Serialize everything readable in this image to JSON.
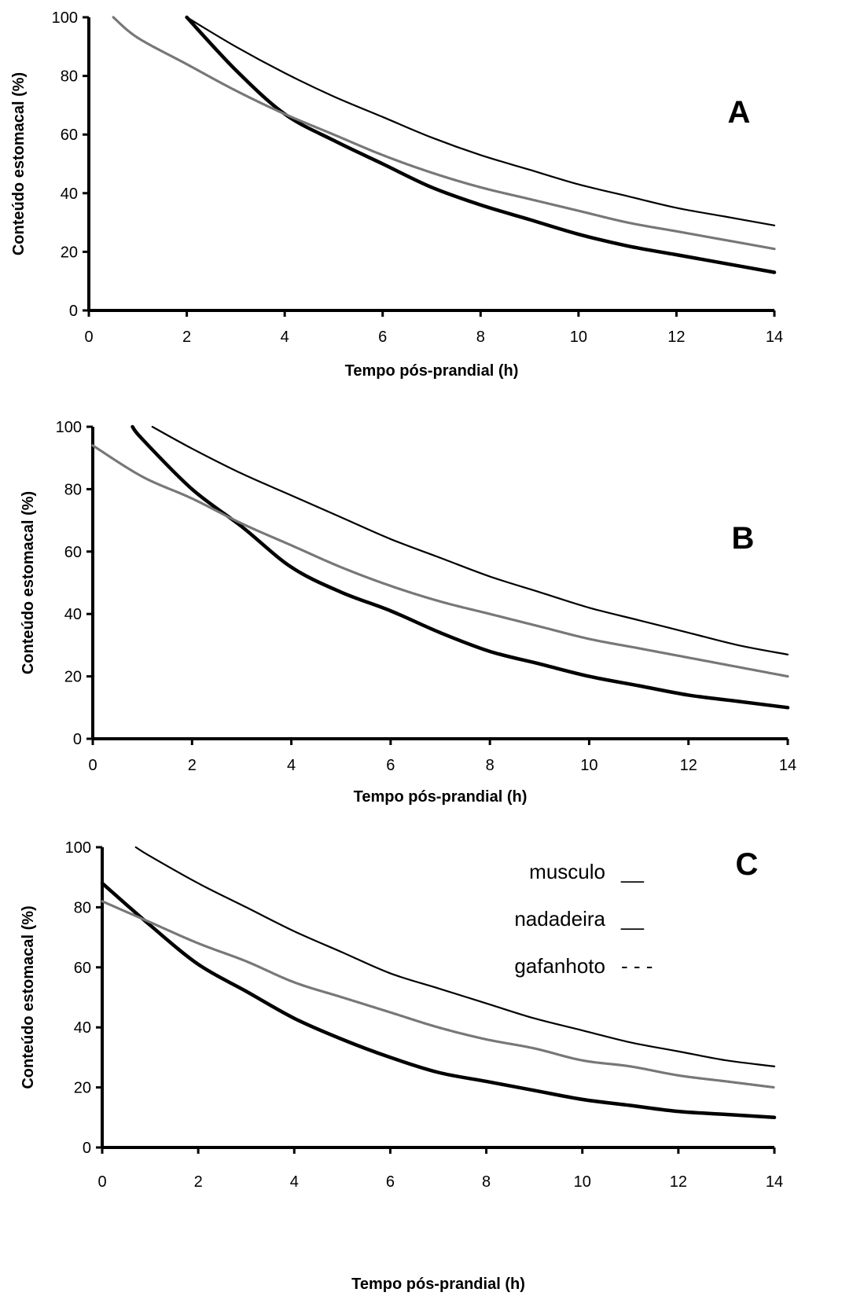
{
  "chart_data": [
    {
      "type": "line",
      "panel_label": "A",
      "xlabel": "Tempo pós-prandial (h)",
      "ylabel": "Conteúdo estomacal (%)",
      "xlim": [
        0,
        14
      ],
      "ylim": [
        0,
        100
      ],
      "xticks": [
        "0",
        "2",
        "4",
        "6",
        "8",
        "10",
        "12",
        "14"
      ],
      "yticks": [
        "0",
        "20",
        "40",
        "60",
        "80",
        "100"
      ],
      "grid": false,
      "series": [
        {
          "key": "musculo",
          "style": "thick-solid",
          "color": "#000000",
          "x": [
            2,
            3,
            4,
            5,
            6,
            7,
            8,
            9,
            10,
            11,
            12,
            13,
            14
          ],
          "y": [
            100,
            82,
            67,
            58,
            50,
            42,
            36,
            31,
            26,
            22,
            19,
            16,
            13
          ]
        },
        {
          "key": "nadadeira",
          "style": "thin-solid",
          "color": "#000000",
          "x": [
            2,
            3,
            4,
            5,
            6,
            7,
            8,
            9,
            10,
            11,
            12,
            13,
            14
          ],
          "y": [
            100,
            90,
            81,
            73,
            66,
            59,
            53,
            48,
            43,
            39,
            35,
            32,
            29
          ]
        },
        {
          "key": "gafanhoto",
          "style": "dotted",
          "color": "#777777",
          "x": [
            0.5,
            1,
            2,
            3,
            4,
            5,
            6,
            7,
            8,
            9,
            10,
            11,
            12,
            13,
            14
          ],
          "y": [
            100,
            93,
            84,
            75,
            67,
            60,
            53,
            47,
            42,
            38,
            34,
            30,
            27,
            24,
            21
          ]
        }
      ]
    },
    {
      "type": "line",
      "panel_label": "B",
      "xlabel": "Tempo pós-prandial (h)",
      "ylabel": "Conteúdo estomacal (%)",
      "xlim": [
        0,
        14
      ],
      "ylim": [
        0,
        100
      ],
      "xticks": [
        "0",
        "2",
        "4",
        "6",
        "8",
        "10",
        "12",
        "14"
      ],
      "yticks": [
        "0",
        "20",
        "40",
        "60",
        "80",
        "100"
      ],
      "grid": false,
      "series": [
        {
          "key": "musculo",
          "style": "thick-solid",
          "color": "#000000",
          "x": [
            0.8,
            1,
            2,
            3,
            4,
            5,
            6,
            7,
            8,
            9,
            10,
            11,
            12,
            13,
            14
          ],
          "y": [
            100,
            96,
            80,
            68,
            55,
            47,
            41,
            34,
            28,
            24,
            20,
            17,
            14,
            12,
            10
          ]
        },
        {
          "key": "nadadeira",
          "style": "thin-solid",
          "color": "#000000",
          "x": [
            1.2,
            2,
            3,
            4,
            5,
            6,
            7,
            8,
            9,
            10,
            11,
            12,
            13,
            14
          ],
          "y": [
            100,
            93,
            85,
            78,
            71,
            64,
            58,
            52,
            47,
            42,
            38,
            34,
            30,
            27
          ]
        },
        {
          "key": "gafanhoto",
          "style": "dotted",
          "color": "#777777",
          "x": [
            0,
            1,
            2,
            3,
            4,
            5,
            6,
            7,
            8,
            9,
            10,
            11,
            12,
            13,
            14
          ],
          "y": [
            94,
            84,
            77,
            69,
            62,
            55,
            49,
            44,
            40,
            36,
            32,
            29,
            26,
            23,
            20
          ]
        }
      ]
    },
    {
      "type": "line",
      "panel_label": "C",
      "xlabel": "Tempo pós-prandial (h)",
      "ylabel": "Conteúdo estomacal (%)",
      "xlim": [
        0,
        14
      ],
      "ylim": [
        0,
        100
      ],
      "xticks": [
        "0",
        "2",
        "4",
        "6",
        "8",
        "10",
        "12",
        "14"
      ],
      "yticks": [
        "0",
        "20",
        "40",
        "60",
        "80",
        "100"
      ],
      "grid": false,
      "legend": {
        "position": "top-right",
        "entries": [
          {
            "label": "musculo",
            "marker": "__"
          },
          {
            "label": "nadadeira",
            "marker": "__"
          },
          {
            "label": "gafanhoto",
            "marker": "- - -"
          }
        ]
      },
      "series": [
        {
          "key": "musculo",
          "name": "musculo",
          "style": "thick-solid",
          "color": "#000000",
          "x": [
            0,
            1,
            2,
            3,
            4,
            5,
            6,
            7,
            8,
            9,
            10,
            11,
            12,
            13,
            14
          ],
          "y": [
            88,
            74,
            61,
            52,
            43,
            36,
            30,
            25,
            22,
            19,
            16,
            14,
            12,
            11,
            10
          ]
        },
        {
          "key": "nadadeira",
          "name": "nadadeira",
          "style": "thin-solid",
          "color": "#000000",
          "x": [
            0.7,
            1,
            2,
            3,
            4,
            5,
            6,
            7,
            8,
            9,
            10,
            11,
            12,
            13,
            14
          ],
          "y": [
            100,
            97,
            88,
            80,
            72,
            65,
            58,
            53,
            48,
            43,
            39,
            35,
            32,
            29,
            27
          ]
        },
        {
          "key": "gafanhoto",
          "name": "gafanhoto",
          "style": "dotted",
          "color": "#777777",
          "x": [
            0,
            1,
            2,
            3,
            4,
            5,
            6,
            7,
            8,
            9,
            10,
            11,
            12,
            13,
            14
          ],
          "y": [
            82,
            75,
            68,
            62,
            55,
            50,
            45,
            40,
            36,
            33,
            29,
            27,
            24,
            22,
            20
          ]
        }
      ]
    }
  ]
}
